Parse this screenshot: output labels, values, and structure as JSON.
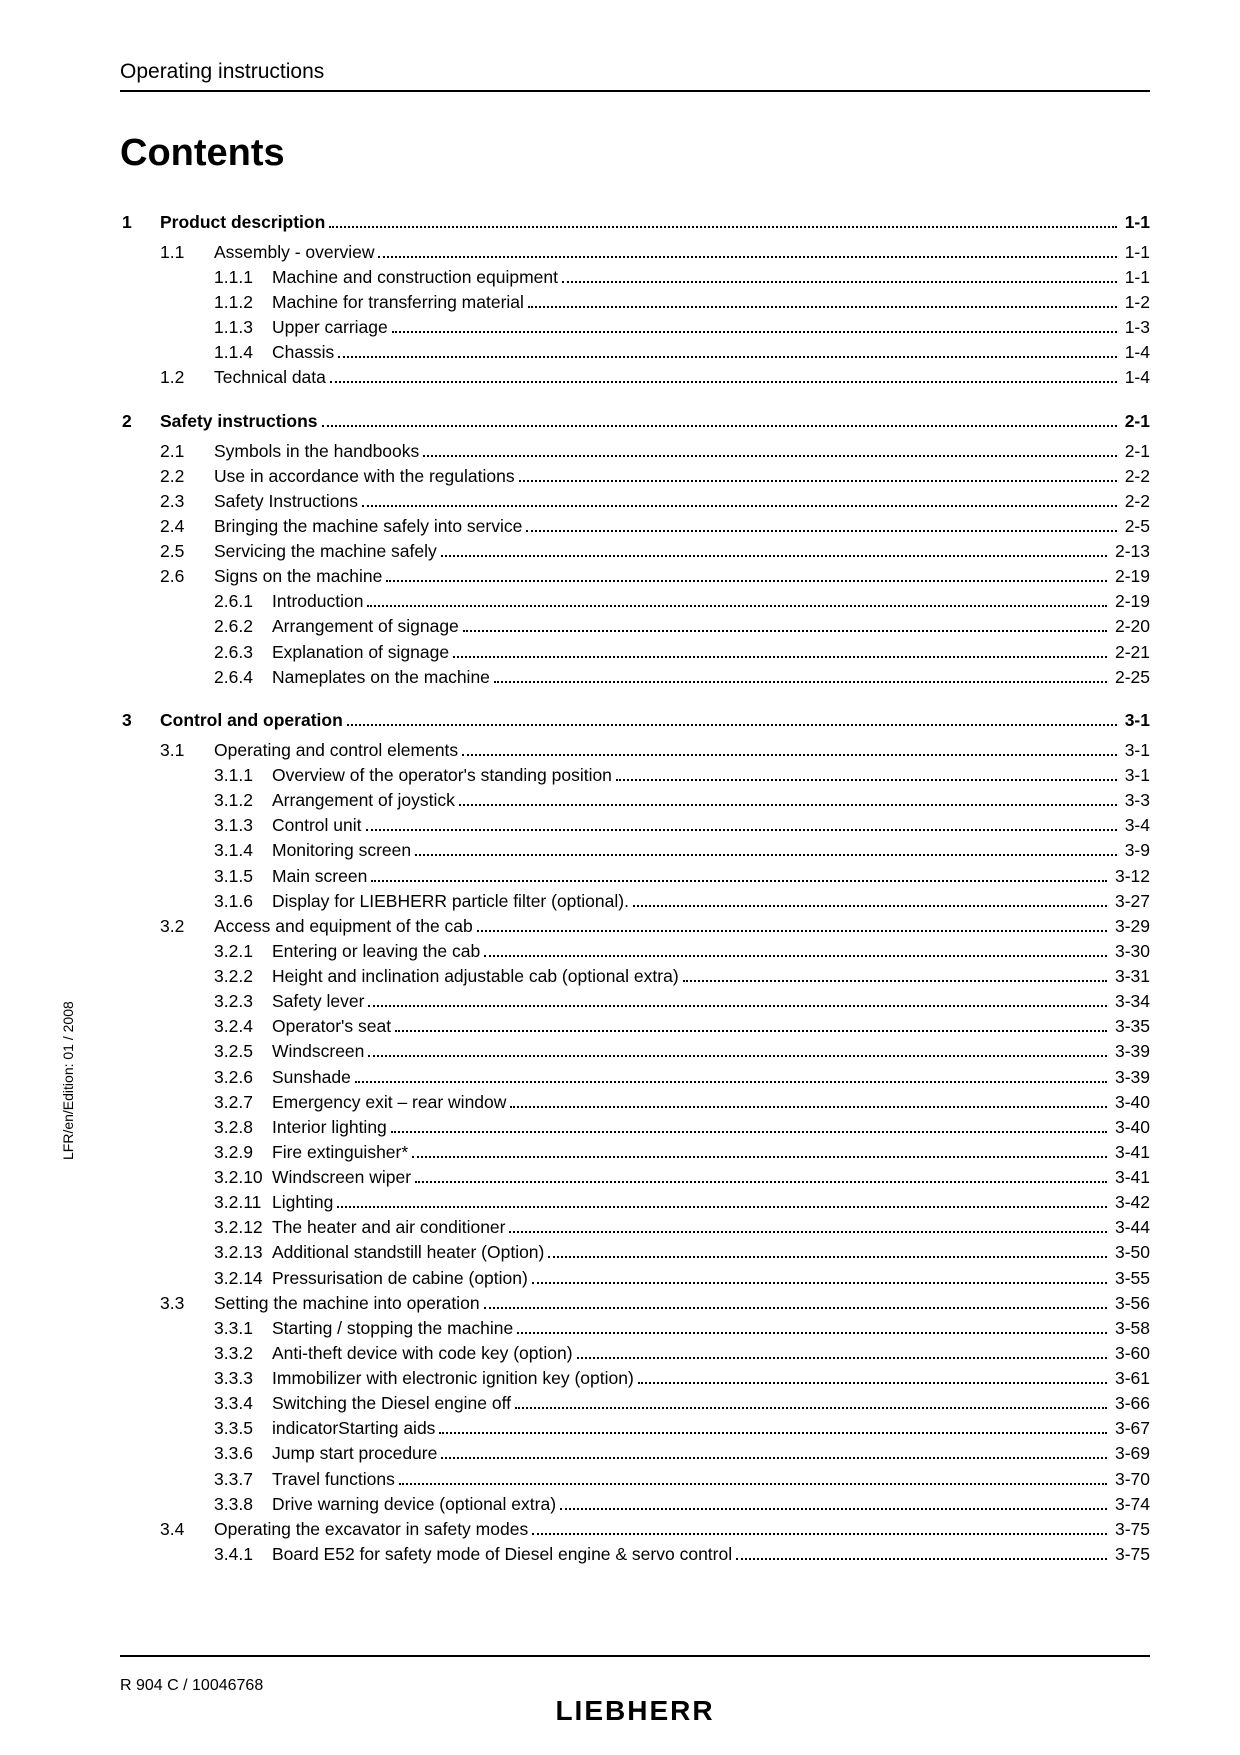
{
  "sideText": "LFR/en/Edition: 01 / 2008",
  "header": "Operating instructions",
  "title": "Contents",
  "footerLeft": "R 904 C / 10046768",
  "brand": "LIEBHERR",
  "entries": [
    {
      "lvl": 0,
      "num": "1",
      "text": "Product description",
      "page": "1-1",
      "bold": true
    },
    {
      "lvl": 1,
      "num": "1.1",
      "text": "Assembly - overview",
      "page": "1-1"
    },
    {
      "lvl": 2,
      "num": "1.1.1",
      "text": "Machine and construction equipment",
      "page": "1-1"
    },
    {
      "lvl": 2,
      "num": "1.1.2",
      "text": "Machine for transferring material",
      "page": "1-2"
    },
    {
      "lvl": 2,
      "num": "1.1.3",
      "text": "Upper carriage",
      "page": "1-3"
    },
    {
      "lvl": 2,
      "num": "1.1.4",
      "text": "Chassis",
      "page": "1-4"
    },
    {
      "lvl": 1,
      "num": "1.2",
      "text": "Technical data",
      "page": "1-4"
    },
    {
      "lvl": 0,
      "num": "2",
      "text": "Safety instructions",
      "page": "2-1",
      "bold": true
    },
    {
      "lvl": 1,
      "num": "2.1",
      "text": "Symbols in the handbooks",
      "page": "2-1"
    },
    {
      "lvl": 1,
      "num": "2.2",
      "text": "Use in accordance with the regulations",
      "page": "2-2"
    },
    {
      "lvl": 1,
      "num": "2.3",
      "text": "Safety Instructions",
      "page": "2-2"
    },
    {
      "lvl": 1,
      "num": "2.4",
      "text": "Bringing the machine safely into service",
      "page": "2-5"
    },
    {
      "lvl": 1,
      "num": "2.5",
      "text": "Servicing the machine safely",
      "page": "2-13"
    },
    {
      "lvl": 1,
      "num": "2.6",
      "text": "Signs on the machine",
      "page": "2-19"
    },
    {
      "lvl": 2,
      "num": "2.6.1",
      "text": "Introduction",
      "page": "2-19"
    },
    {
      "lvl": 2,
      "num": "2.6.2",
      "text": "Arrangement of signage",
      "page": "2-20"
    },
    {
      "lvl": 2,
      "num": "2.6.3",
      "text": "Explanation of signage",
      "page": "2-21"
    },
    {
      "lvl": 2,
      "num": "2.6.4",
      "text": "Nameplates on the machine",
      "page": "2-25"
    },
    {
      "lvl": 0,
      "num": "3",
      "text": "Control and operation",
      "page": "3-1",
      "bold": true
    },
    {
      "lvl": 1,
      "num": "3.1",
      "text": "Operating and control elements",
      "page": "3-1"
    },
    {
      "lvl": 2,
      "num": "3.1.1",
      "text": "Overview of the operator's standing position",
      "page": "3-1"
    },
    {
      "lvl": 2,
      "num": "3.1.2",
      "text": "Arrangement of joystick",
      "page": "3-3"
    },
    {
      "lvl": 2,
      "num": "3.1.3",
      "text": "Control unit",
      "page": "3-4"
    },
    {
      "lvl": 2,
      "num": "3.1.4",
      "text": "Monitoring screen",
      "page": "3-9"
    },
    {
      "lvl": 2,
      "num": "3.1.5",
      "text": "Main screen",
      "page": "3-12"
    },
    {
      "lvl": 2,
      "num": "3.1.6",
      "text": "Display for LIEBHERR particle filter (optional).",
      "page": "3-27"
    },
    {
      "lvl": 1,
      "num": "3.2",
      "text": "Access and equipment of the cab",
      "page": "3-29"
    },
    {
      "lvl": 2,
      "num": "3.2.1",
      "text": "Entering or leaving the cab",
      "page": "3-30"
    },
    {
      "lvl": 2,
      "num": "3.2.2",
      "text": "Height and inclination adjustable cab (optional extra)",
      "page": "3-31"
    },
    {
      "lvl": 2,
      "num": "3.2.3",
      "text": "Safety lever",
      "page": "3-34"
    },
    {
      "lvl": 2,
      "num": "3.2.4",
      "text": "Operator's seat",
      "page": "3-35"
    },
    {
      "lvl": 2,
      "num": "3.2.5",
      "text": "Windscreen",
      "page": "3-39"
    },
    {
      "lvl": 2,
      "num": "3.2.6",
      "text": "Sunshade",
      "page": "3-39"
    },
    {
      "lvl": 2,
      "num": "3.2.7",
      "text": "Emergency exit – rear window",
      "page": "3-40"
    },
    {
      "lvl": 2,
      "num": "3.2.8",
      "text": "Interior lighting",
      "page": "3-40"
    },
    {
      "lvl": 2,
      "num": "3.2.9",
      "text": "Fire extinguisher*",
      "page": "3-41"
    },
    {
      "lvl": 2,
      "num": "3.2.10",
      "text": "Windscreen wiper",
      "page": "3-41"
    },
    {
      "lvl": 2,
      "num": "3.2.11",
      "text": "Lighting",
      "page": "3-42"
    },
    {
      "lvl": 2,
      "num": "3.2.12",
      "text": "The heater and air conditioner",
      "page": "3-44"
    },
    {
      "lvl": 2,
      "num": "3.2.13",
      "text": "Additional standstill heater (Option)",
      "page": "3-50"
    },
    {
      "lvl": 2,
      "num": "3.2.14",
      "text": "Pressurisation de cabine (option)",
      "page": "3-55"
    },
    {
      "lvl": 1,
      "num": "3.3",
      "text": "Setting the machine into operation",
      "page": "3-56"
    },
    {
      "lvl": 2,
      "num": "3.3.1",
      "text": "Starting / stopping the machine",
      "page": "3-58"
    },
    {
      "lvl": 2,
      "num": "3.3.2",
      "text": "Anti-theft device with code key (option)",
      "page": "3-60"
    },
    {
      "lvl": 2,
      "num": "3.3.3",
      "text": "Immobilizer with electronic ignition key (option)",
      "page": "3-61"
    },
    {
      "lvl": 2,
      "num": "3.3.4",
      "text": "Switching the Diesel engine off",
      "page": "3-66"
    },
    {
      "lvl": 2,
      "num": "3.3.5",
      "text": "indicatorStarting aids",
      "page": "3-67"
    },
    {
      "lvl": 2,
      "num": "3.3.6",
      "text": "Jump start procedure",
      "page": "3-69"
    },
    {
      "lvl": 2,
      "num": "3.3.7",
      "text": "Travel functions",
      "page": "3-70"
    },
    {
      "lvl": 2,
      "num": "3.3.8",
      "text": "Drive warning device (optional extra)",
      "page": "3-74"
    },
    {
      "lvl": 1,
      "num": "3.4",
      "text": "Operating the excavator in safety modes",
      "page": "3-75"
    },
    {
      "lvl": 2,
      "num": "3.4.1",
      "text": "Board E52 for safety mode of Diesel engine & servo control",
      "page": "3-75"
    }
  ]
}
